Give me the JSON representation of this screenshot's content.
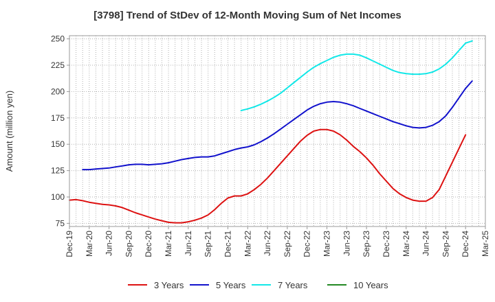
{
  "chart_data": {
    "type": "line",
    "title": "[3798]  Trend of StDev of 12-Month Moving Sum of Net Incomes",
    "ylabel": "Amount (million yen)",
    "xlabel": "",
    "ylim": [
      72,
      253
    ],
    "yticks": [
      75,
      100,
      125,
      150,
      175,
      200,
      225,
      250
    ],
    "x_range": [
      "2019-12",
      "2025-03"
    ],
    "xtick_labels": [
      "Dec-19",
      "Mar-20",
      "Jun-20",
      "Sep-20",
      "Dec-20",
      "Mar-21",
      "Jun-21",
      "Sep-21",
      "Dec-21",
      "Mar-22",
      "Jun-22",
      "Sep-22",
      "Dec-22",
      "Mar-23",
      "Jun-23",
      "Sep-23",
      "Dec-23",
      "Mar-24",
      "Jun-24",
      "Sep-24",
      "Dec-24",
      "Mar-25"
    ],
    "grid": true,
    "legend_position": "bottom",
    "series": [
      {
        "name": "3 Years",
        "color": "#dd1111",
        "points": [
          [
            "2019-12",
            97
          ],
          [
            "2020-01",
            97.5
          ],
          [
            "2020-02",
            96.5
          ],
          [
            "2020-03",
            95
          ],
          [
            "2020-04",
            94
          ],
          [
            "2020-05",
            93
          ],
          [
            "2020-06",
            92.5
          ],
          [
            "2020-07",
            91.5
          ],
          [
            "2020-08",
            90
          ],
          [
            "2020-09",
            87.5
          ],
          [
            "2020-10",
            85
          ],
          [
            "2020-11",
            83
          ],
          [
            "2020-12",
            81
          ],
          [
            "2021-01",
            79
          ],
          [
            "2021-02",
            77.5
          ],
          [
            "2021-03",
            76
          ],
          [
            "2021-04",
            75.5
          ],
          [
            "2021-05",
            75.5
          ],
          [
            "2021-06",
            76.5
          ],
          [
            "2021-07",
            78
          ],
          [
            "2021-08",
            80
          ],
          [
            "2021-09",
            83
          ],
          [
            "2021-10",
            88
          ],
          [
            "2021-11",
            94
          ],
          [
            "2021-12",
            99
          ],
          [
            "2022-01",
            101
          ],
          [
            "2022-02",
            101
          ],
          [
            "2022-03",
            103
          ],
          [
            "2022-04",
            107
          ],
          [
            "2022-05",
            112
          ],
          [
            "2022-06",
            118
          ],
          [
            "2022-07",
            125
          ],
          [
            "2022-08",
            132
          ],
          [
            "2022-09",
            139
          ],
          [
            "2022-10",
            146
          ],
          [
            "2022-11",
            153
          ],
          [
            "2022-12",
            158.5
          ],
          [
            "2023-01",
            162.5
          ],
          [
            "2023-02",
            164
          ],
          [
            "2023-03",
            164
          ],
          [
            "2023-04",
            162.5
          ],
          [
            "2023-05",
            159
          ],
          [
            "2023-06",
            154
          ],
          [
            "2023-07",
            148
          ],
          [
            "2023-08",
            143
          ],
          [
            "2023-09",
            137
          ],
          [
            "2023-10",
            130
          ],
          [
            "2023-11",
            122
          ],
          [
            "2023-12",
            115
          ],
          [
            "2024-01",
            108
          ],
          [
            "2024-02",
            103
          ],
          [
            "2024-03",
            99.5
          ],
          [
            "2024-04",
            97
          ],
          [
            "2024-05",
            96
          ],
          [
            "2024-06",
            96
          ],
          [
            "2024-07",
            99.5
          ],
          [
            "2024-08",
            107
          ],
          [
            "2024-09",
            120
          ],
          [
            "2024-10",
            133
          ],
          [
            "2024-11",
            146
          ],
          [
            "2024-12",
            159
          ]
        ]
      },
      {
        "name": "5 Years",
        "color": "#1111cc",
        "points": [
          [
            "2020-02",
            126
          ],
          [
            "2020-03",
            126
          ],
          [
            "2020-04",
            126.5
          ],
          [
            "2020-05",
            127
          ],
          [
            "2020-06",
            127.5
          ],
          [
            "2020-07",
            128.5
          ],
          [
            "2020-08",
            129.5
          ],
          [
            "2020-09",
            130.5
          ],
          [
            "2020-10",
            131
          ],
          [
            "2020-11",
            131
          ],
          [
            "2020-12",
            130.5
          ],
          [
            "2021-01",
            131
          ],
          [
            "2021-02",
            131.5
          ],
          [
            "2021-03",
            132.5
          ],
          [
            "2021-04",
            134
          ],
          [
            "2021-05",
            135.5
          ],
          [
            "2021-06",
            136.5
          ],
          [
            "2021-07",
            137.5
          ],
          [
            "2021-08",
            138
          ],
          [
            "2021-09",
            138
          ],
          [
            "2021-10",
            139
          ],
          [
            "2021-11",
            141
          ],
          [
            "2021-12",
            143
          ],
          [
            "2022-01",
            145
          ],
          [
            "2022-02",
            146.5
          ],
          [
            "2022-03",
            147.5
          ],
          [
            "2022-04",
            149.5
          ],
          [
            "2022-05",
            152.5
          ],
          [
            "2022-06",
            156
          ],
          [
            "2022-07",
            160
          ],
          [
            "2022-08",
            164.5
          ],
          [
            "2022-09",
            169
          ],
          [
            "2022-10",
            173.5
          ],
          [
            "2022-11",
            178
          ],
          [
            "2022-12",
            182.5
          ],
          [
            "2023-01",
            186
          ],
          [
            "2023-02",
            188.5
          ],
          [
            "2023-03",
            190
          ],
          [
            "2023-04",
            190.5
          ],
          [
            "2023-05",
            190
          ],
          [
            "2023-06",
            188.5
          ],
          [
            "2023-07",
            186.5
          ],
          [
            "2023-08",
            184
          ],
          [
            "2023-09",
            181.5
          ],
          [
            "2023-10",
            179
          ],
          [
            "2023-11",
            176.5
          ],
          [
            "2023-12",
            174
          ],
          [
            "2024-01",
            171.5
          ],
          [
            "2024-02",
            169.5
          ],
          [
            "2024-03",
            167.5
          ],
          [
            "2024-04",
            166
          ],
          [
            "2024-05",
            165.5
          ],
          [
            "2024-06",
            166
          ],
          [
            "2024-07",
            168
          ],
          [
            "2024-08",
            171.5
          ],
          [
            "2024-09",
            177
          ],
          [
            "2024-10",
            185
          ],
          [
            "2024-11",
            194
          ],
          [
            "2024-12",
            203
          ],
          [
            "2025-01",
            210
          ]
        ]
      },
      {
        "name": "7 Years",
        "color": "#11e8e8",
        "points": [
          [
            "2022-02",
            182
          ],
          [
            "2022-03",
            183.5
          ],
          [
            "2022-04",
            185.5
          ],
          [
            "2022-05",
            188
          ],
          [
            "2022-06",
            191
          ],
          [
            "2022-07",
            194.5
          ],
          [
            "2022-08",
            198.5
          ],
          [
            "2022-09",
            203.5
          ],
          [
            "2022-10",
            208.5
          ],
          [
            "2022-11",
            213.5
          ],
          [
            "2022-12",
            218.5
          ],
          [
            "2023-01",
            223
          ],
          [
            "2023-02",
            226.5
          ],
          [
            "2023-03",
            229.5
          ],
          [
            "2023-04",
            232.5
          ],
          [
            "2023-05",
            234.5
          ],
          [
            "2023-06",
            235.5
          ],
          [
            "2023-07",
            235.5
          ],
          [
            "2023-08",
            234.5
          ],
          [
            "2023-09",
            232
          ],
          [
            "2023-10",
            229
          ],
          [
            "2023-11",
            226
          ],
          [
            "2023-12",
            223
          ],
          [
            "2024-01",
            220
          ],
          [
            "2024-02",
            218
          ],
          [
            "2024-03",
            217
          ],
          [
            "2024-04",
            216.5
          ],
          [
            "2024-05",
            216.5
          ],
          [
            "2024-06",
            217
          ],
          [
            "2024-07",
            218.5
          ],
          [
            "2024-08",
            221.5
          ],
          [
            "2024-09",
            226
          ],
          [
            "2024-10",
            232
          ],
          [
            "2024-11",
            239
          ],
          [
            "2024-12",
            246
          ],
          [
            "2025-01",
            248
          ]
        ]
      },
      {
        "name": "10 Years",
        "color": "#228822",
        "points": []
      }
    ]
  }
}
